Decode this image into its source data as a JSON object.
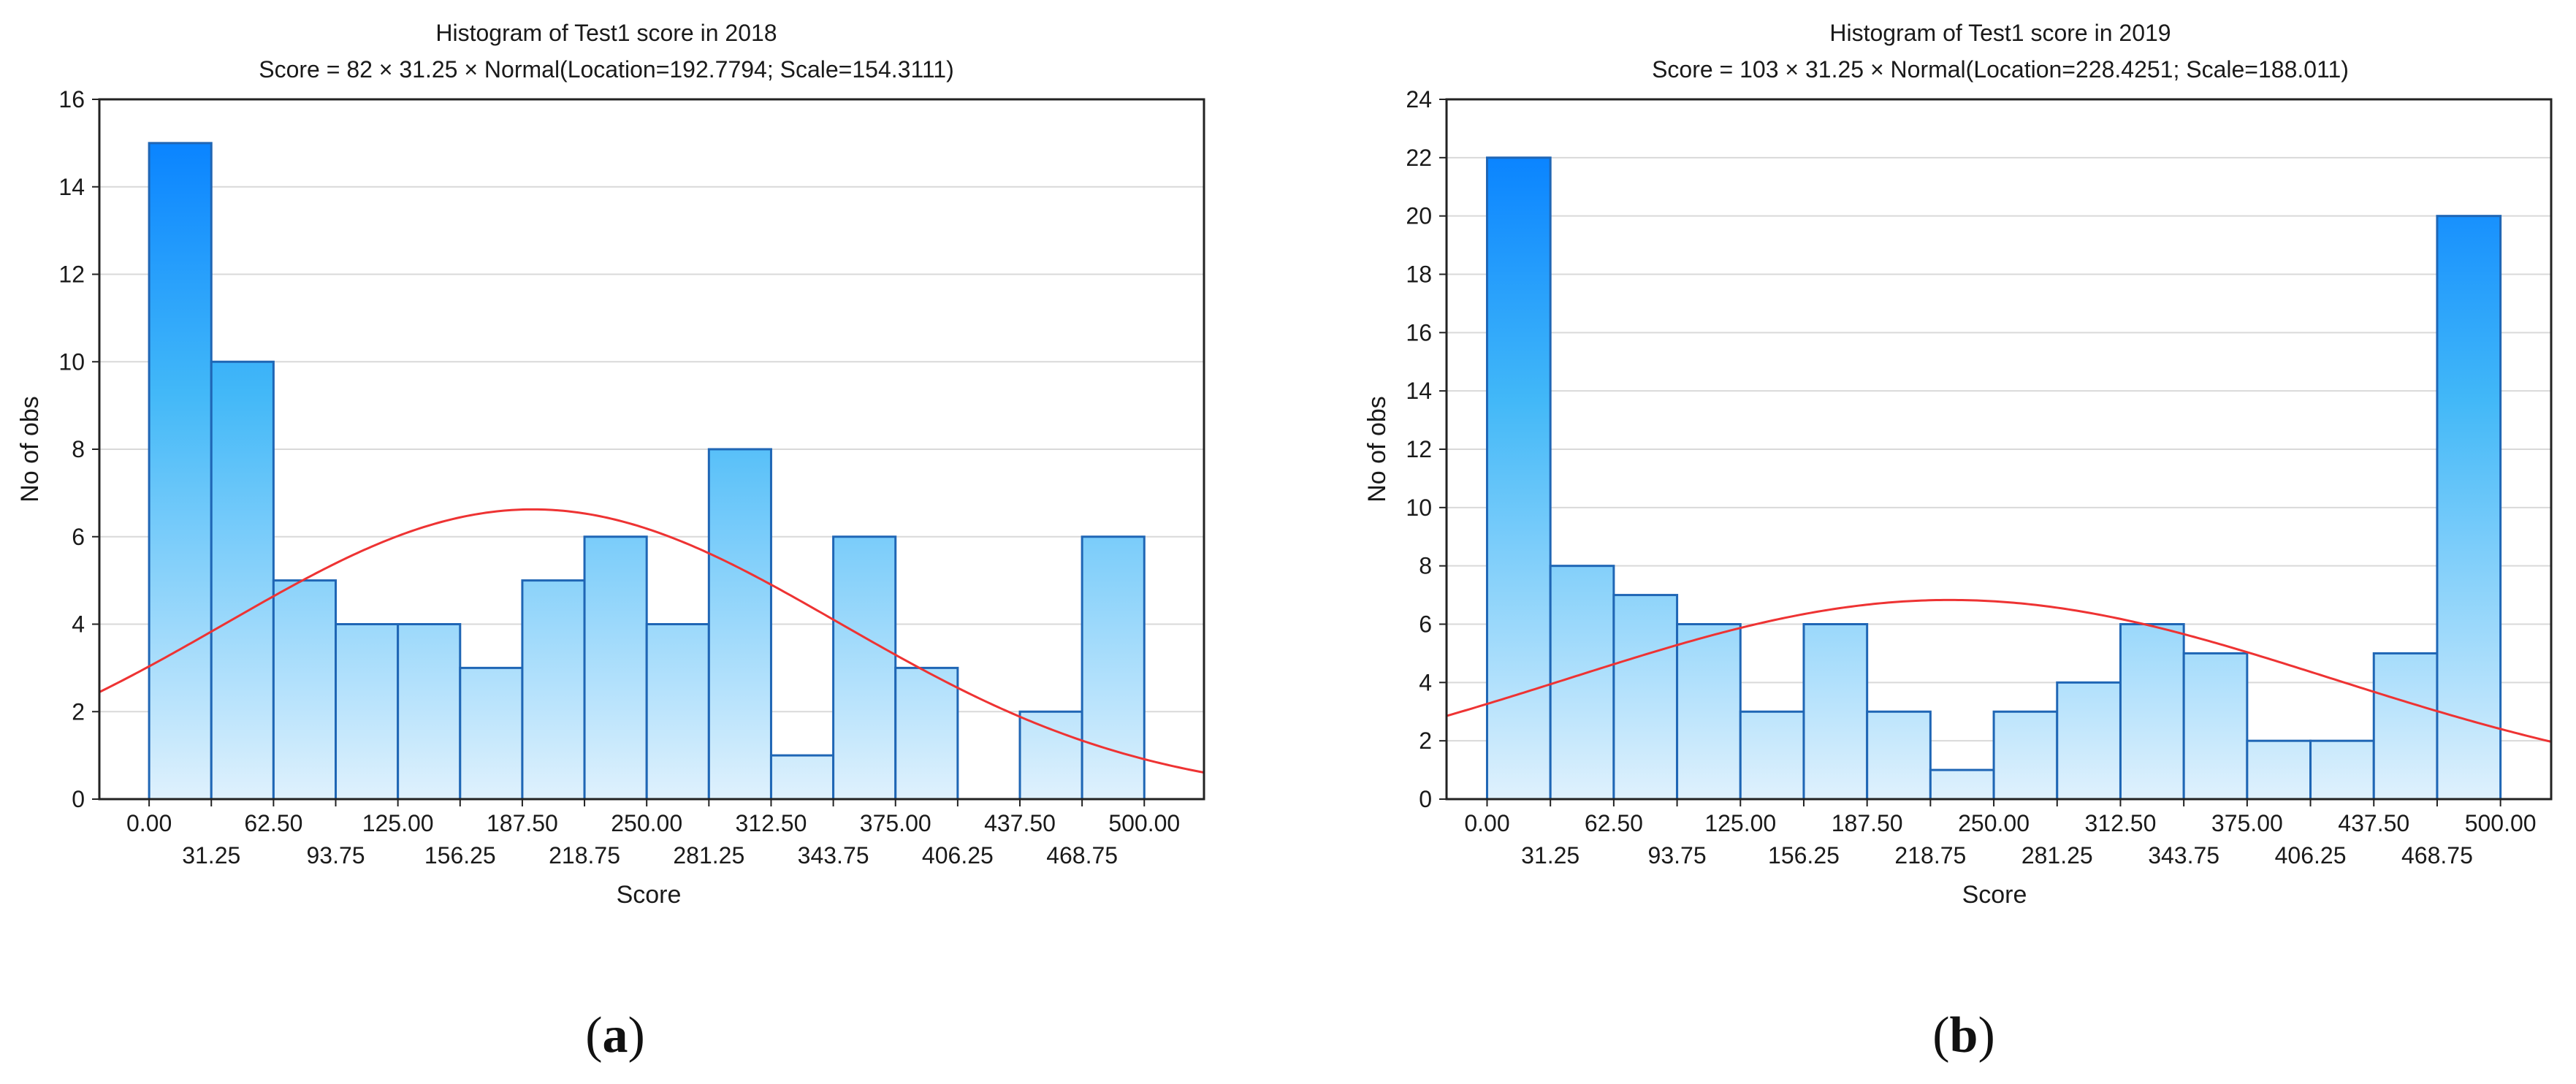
{
  "colors": {
    "bar_top": "#0a84ff",
    "bar_mid": "#42b8f8",
    "bar_bottom": "#dff1fd",
    "bar_edge": "#1f66b5",
    "fit_line": "#ee3333",
    "grid": "#d9d9d9",
    "axis": "#222222"
  },
  "chart_data": [
    {
      "type": "bar",
      "title": "Histogram of Test1 score in 2018",
      "subtitle": "Score = 82 × 31.25 × Normal(Location=192.7794; Scale=154.3111)",
      "xlabel": "Score",
      "ylabel": "No of obs",
      "panel_label_open": "(",
      "panel_label_letter": "a",
      "panel_label_close": ")",
      "bin_width": 31.25,
      "bin_edges_start": 0,
      "values": [
        15,
        10,
        5,
        4,
        4,
        3,
        5,
        6,
        4,
        8,
        1,
        6,
        3,
        0,
        2,
        6
      ],
      "ylim": [
        0,
        16
      ],
      "yticks": [
        "0",
        "2",
        "4",
        "6",
        "8",
        "10",
        "12",
        "14",
        "16"
      ],
      "xlim": [
        -25,
        530
      ],
      "xticks_upper": [
        "0.00",
        "62.50",
        "125.00",
        "187.50",
        "250.00",
        "312.50",
        "375.00",
        "437.50",
        "500.00"
      ],
      "xticks_lower": [
        "31.25",
        "93.75",
        "156.25",
        "218.75",
        "281.25",
        "343.75",
        "406.25",
        "468.75"
      ],
      "fit": {
        "n": 82,
        "bin_width": 31.25,
        "location": 192.7794,
        "scale": 154.3111
      }
    },
    {
      "type": "bar",
      "title": "Histogram of Test1 score in 2019",
      "subtitle": "Score = 103 × 31.25 × Normal(Location=228.4251; Scale=188.011)",
      "xlabel": "Score",
      "ylabel": "No of obs",
      "panel_label_open": "(",
      "panel_label_letter": "b",
      "panel_label_close": ")",
      "bin_width": 31.25,
      "bin_edges_start": 0,
      "values": [
        22,
        8,
        7,
        6,
        3,
        6,
        3,
        1,
        3,
        4,
        6,
        5,
        2,
        2,
        5,
        20
      ],
      "ylim": [
        0,
        24
      ],
      "yticks": [
        "0",
        "2",
        "4",
        "6",
        "8",
        "10",
        "12",
        "14",
        "16",
        "18",
        "20",
        "22",
        "24"
      ],
      "xlim": [
        -20,
        525
      ],
      "xticks_upper": [
        "0.00",
        "62.50",
        "125.00",
        "187.50",
        "250.00",
        "312.50",
        "375.00",
        "437.50",
        "500.00"
      ],
      "xticks_lower": [
        "31.25",
        "93.75",
        "156.25",
        "218.75",
        "281.25",
        "343.75",
        "406.25",
        "468.75"
      ],
      "fit": {
        "n": 103,
        "bin_width": 31.25,
        "location": 228.4251,
        "scale": 188.011
      }
    }
  ]
}
